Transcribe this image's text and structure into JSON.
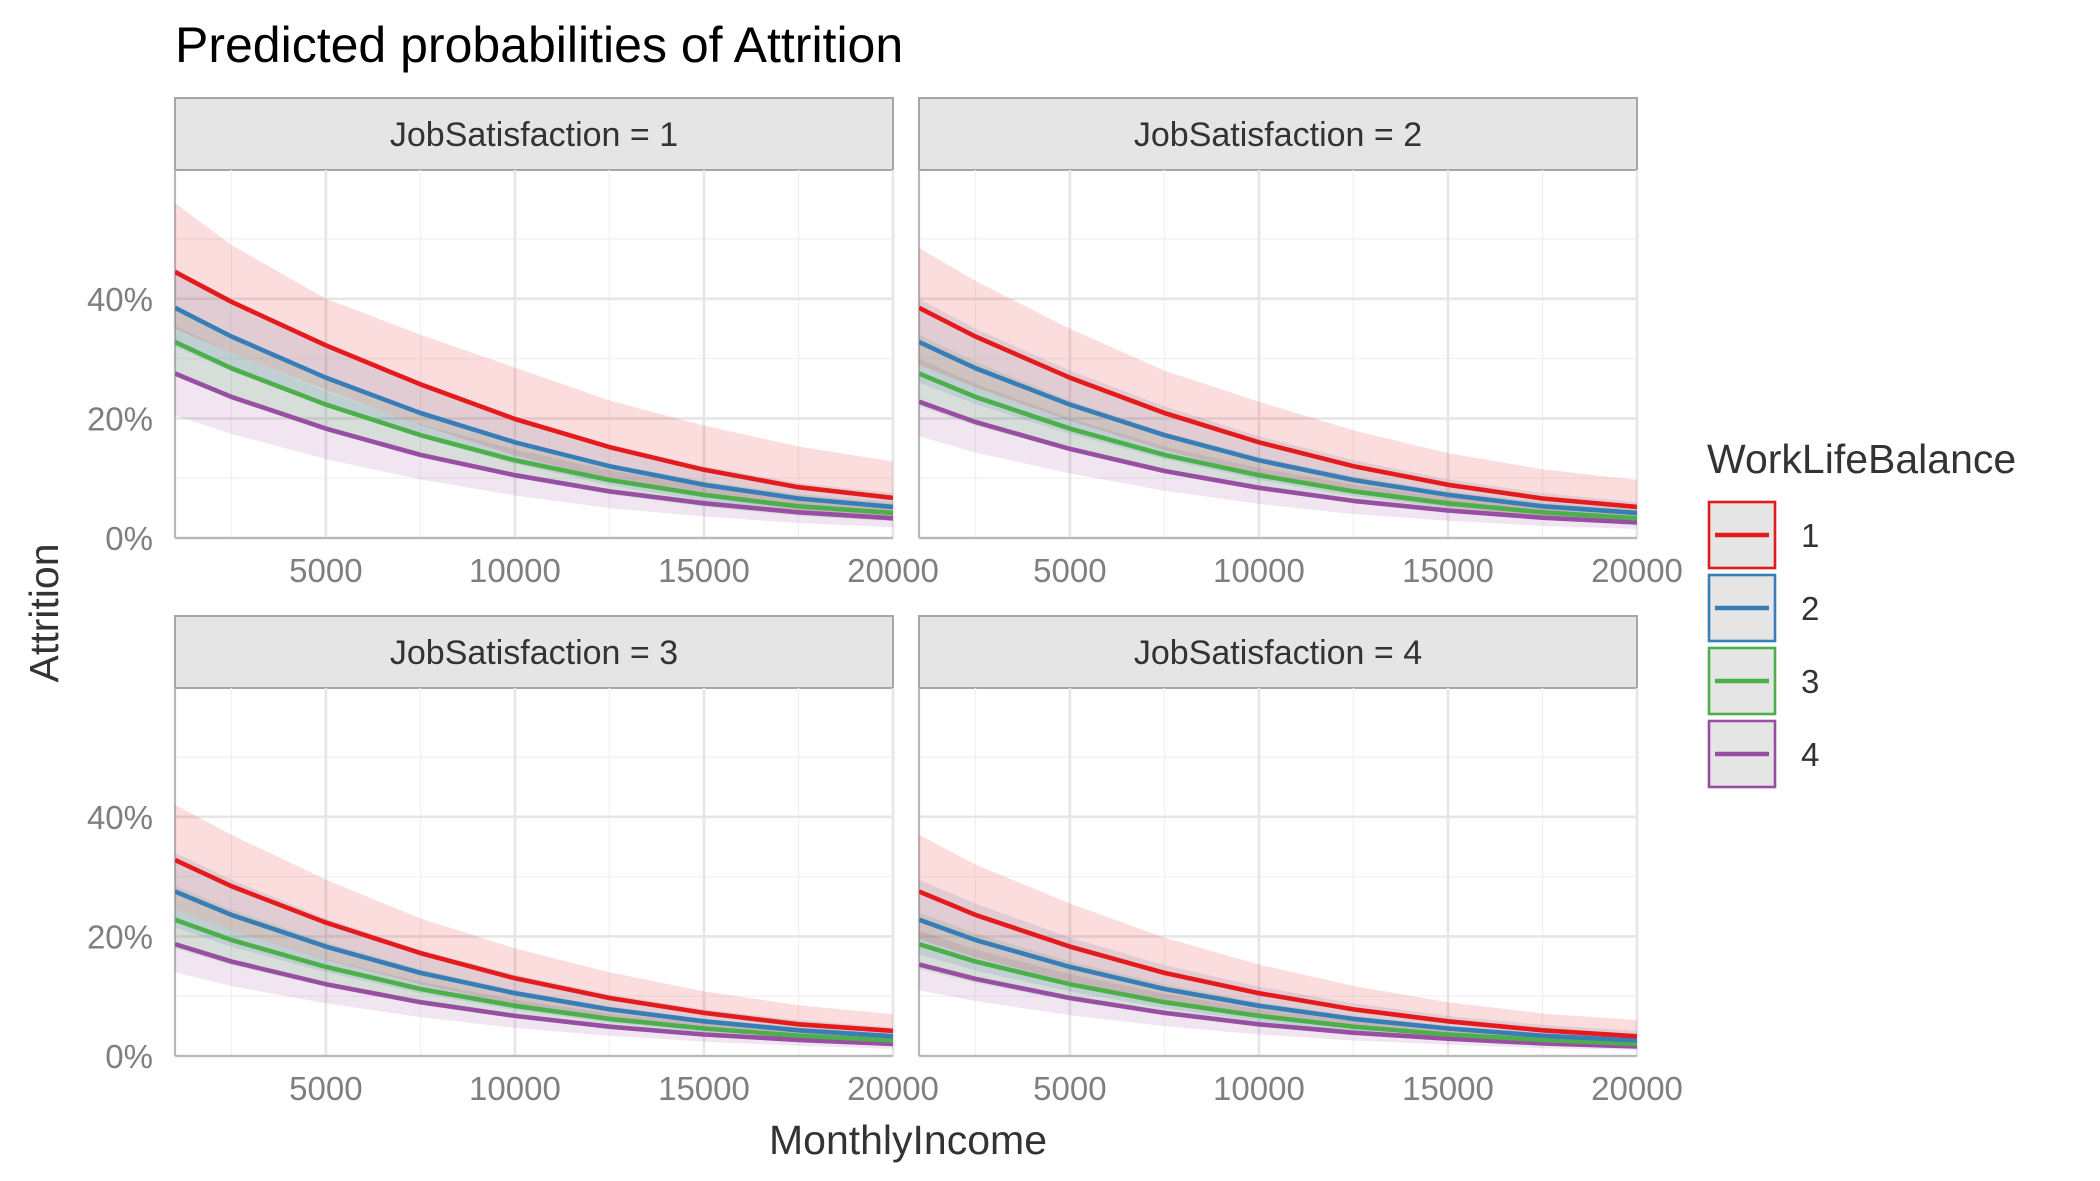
{
  "chart_data": {
    "type": "line",
    "title": "Predicted probabilities of Attrition",
    "xlabel": "MonthlyIncome",
    "ylabel": "Attrition",
    "xlim": [
      1009,
      19999
    ],
    "ylim": [
      0,
      0.6
    ],
    "x_ticks": [
      5000,
      10000,
      15000,
      20000
    ],
    "x_tick_labels": [
      "5000",
      "10000",
      "15000",
      "20000"
    ],
    "y_ticks": [
      0,
      0.2,
      0.4
    ],
    "y_tick_labels": [
      "0%",
      "20%",
      "40%"
    ],
    "grid": true,
    "legend": {
      "title": "WorkLifeBalance",
      "position": "right"
    },
    "x": [
      1000,
      2500,
      5000,
      7500,
      10000,
      12500,
      15000,
      17500,
      20000
    ],
    "facets": [
      {
        "label": "JobSatisfaction = 1",
        "series": [
          {
            "name": "1",
            "color": "#e41a1c",
            "values": [
              0.445,
              0.395,
              0.322,
              0.257,
              0.199,
              0.152,
              0.114,
              0.085,
              0.067
            ],
            "lower": [
              0.35,
              0.31,
              0.247,
              0.189,
              0.138,
              0.098,
              0.068,
              0.047,
              0.035
            ],
            "upper": [
              0.56,
              0.49,
              0.4,
              0.34,
              0.285,
              0.23,
              0.188,
              0.153,
              0.128
            ]
          },
          {
            "name": "2",
            "color": "#377eb8",
            "values": [
              0.385,
              0.337,
              0.268,
              0.209,
              0.16,
              0.12,
              0.089,
              0.066,
              0.052
            ],
            "lower": [
              0.32,
              0.279,
              0.22,
              0.168,
              0.124,
              0.088,
              0.062,
              0.044,
              0.033
            ],
            "upper": [
              0.45,
              0.4,
              0.32,
              0.254,
              0.2,
              0.155,
              0.12,
              0.092,
              0.075
            ]
          },
          {
            "name": "3",
            "color": "#4daf4a",
            "values": [
              0.328,
              0.284,
              0.223,
              0.172,
              0.13,
              0.097,
              0.072,
              0.053,
              0.042
            ],
            "lower": [
              0.27,
              0.232,
              0.18,
              0.137,
              0.101,
              0.073,
              0.052,
              0.037,
              0.028
            ],
            "upper": [
              0.39,
              0.34,
              0.27,
              0.212,
              0.163,
              0.124,
              0.095,
              0.073,
              0.06
            ]
          },
          {
            "name": "4",
            "color": "#984ea3",
            "values": [
              0.275,
              0.236,
              0.183,
              0.139,
              0.105,
              0.078,
              0.058,
              0.043,
              0.033
            ],
            "lower": [
              0.205,
              0.174,
              0.132,
              0.098,
              0.071,
              0.05,
              0.036,
              0.025,
              0.018
            ],
            "upper": [
              0.355,
              0.31,
              0.245,
              0.19,
              0.148,
              0.113,
              0.087,
              0.068,
              0.057
            ]
          }
        ]
      },
      {
        "label": "JobSatisfaction = 2",
        "series": [
          {
            "name": "1",
            "color": "#e41a1c",
            "values": [
              0.385,
              0.337,
              0.268,
              0.209,
              0.16,
              0.12,
              0.089,
              0.066,
              0.052
            ],
            "lower": [
              0.29,
              0.252,
              0.196,
              0.147,
              0.106,
              0.075,
              0.052,
              0.036,
              0.027
            ],
            "upper": [
              0.485,
              0.43,
              0.35,
              0.28,
              0.228,
              0.18,
              0.142,
              0.115,
              0.097
            ]
          },
          {
            "name": "2",
            "color": "#377eb8",
            "values": [
              0.328,
              0.284,
              0.223,
              0.172,
              0.13,
              0.097,
              0.072,
              0.053,
              0.042
            ],
            "lower": [
              0.26,
              0.224,
              0.174,
              0.132,
              0.097,
              0.07,
              0.05,
              0.035,
              0.026
            ],
            "upper": [
              0.4,
              0.35,
              0.28,
              0.22,
              0.17,
              0.13,
              0.098,
              0.075,
              0.06
            ]
          },
          {
            "name": "3",
            "color": "#4daf4a",
            "values": [
              0.275,
              0.236,
              0.183,
              0.139,
              0.105,
              0.078,
              0.058,
              0.043,
              0.033
            ],
            "lower": [
              0.22,
              0.188,
              0.145,
              0.109,
              0.08,
              0.058,
              0.042,
              0.03,
              0.022
            ],
            "upper": [
              0.34,
              0.295,
              0.23,
              0.177,
              0.136,
              0.103,
              0.078,
              0.06,
              0.048
            ]
          },
          {
            "name": "4",
            "color": "#984ea3",
            "values": [
              0.228,
              0.194,
              0.149,
              0.112,
              0.084,
              0.062,
              0.046,
              0.034,
              0.026
            ],
            "lower": [
              0.17,
              0.143,
              0.108,
              0.079,
              0.057,
              0.04,
              0.029,
              0.02,
              0.015
            ],
            "upper": [
              0.3,
              0.258,
              0.2,
              0.153,
              0.117,
              0.089,
              0.068,
              0.053,
              0.043
            ]
          }
        ]
      },
      {
        "label": "JobSatisfaction = 3",
        "series": [
          {
            "name": "1",
            "color": "#e41a1c",
            "values": [
              0.328,
              0.284,
              0.223,
              0.172,
              0.13,
              0.097,
              0.072,
              0.053,
              0.042
            ],
            "lower": [
              0.245,
              0.21,
              0.161,
              0.12,
              0.087,
              0.062,
              0.043,
              0.03,
              0.022
            ],
            "upper": [
              0.42,
              0.37,
              0.295,
              0.23,
              0.18,
              0.14,
              0.108,
              0.085,
              0.07
            ]
          },
          {
            "name": "2",
            "color": "#377eb8",
            "values": [
              0.275,
              0.236,
              0.183,
              0.139,
              0.105,
              0.078,
              0.058,
              0.043,
              0.033
            ],
            "lower": [
              0.215,
              0.183,
              0.14,
              0.105,
              0.077,
              0.056,
              0.04,
              0.028,
              0.021
            ],
            "upper": [
              0.34,
              0.295,
              0.23,
              0.177,
              0.136,
              0.103,
              0.078,
              0.06,
              0.048
            ]
          },
          {
            "name": "3",
            "color": "#4daf4a",
            "values": [
              0.228,
              0.194,
              0.149,
              0.112,
              0.084,
              0.062,
              0.046,
              0.034,
              0.026
            ],
            "lower": [
              0.18,
              0.152,
              0.116,
              0.086,
              0.063,
              0.046,
              0.033,
              0.023,
              0.017
            ],
            "upper": [
              0.285,
              0.245,
              0.19,
              0.145,
              0.11,
              0.083,
              0.062,
              0.048,
              0.038
            ]
          },
          {
            "name": "4",
            "color": "#984ea3",
            "values": [
              0.187,
              0.158,
              0.12,
              0.09,
              0.067,
              0.049,
              0.036,
              0.027,
              0.02
            ],
            "lower": [
              0.14,
              0.117,
              0.088,
              0.065,
              0.047,
              0.034,
              0.024,
              0.017,
              0.012
            ],
            "upper": [
              0.245,
              0.21,
              0.162,
              0.124,
              0.094,
              0.071,
              0.054,
              0.041,
              0.033
            ]
          }
        ]
      },
      {
        "label": "JobSatisfaction = 4",
        "series": [
          {
            "name": "1",
            "color": "#e41a1c",
            "values": [
              0.275,
              0.236,
              0.183,
              0.139,
              0.105,
              0.078,
              0.058,
              0.043,
              0.033
            ],
            "lower": [
              0.195,
              0.165,
              0.124,
              0.091,
              0.066,
              0.047,
              0.033,
              0.023,
              0.017
            ],
            "upper": [
              0.37,
              0.32,
              0.255,
              0.198,
              0.153,
              0.117,
              0.09,
              0.071,
              0.06
            ]
          },
          {
            "name": "2",
            "color": "#377eb8",
            "values": [
              0.228,
              0.194,
              0.149,
              0.112,
              0.084,
              0.062,
              0.046,
              0.034,
              0.026
            ],
            "lower": [
              0.17,
              0.143,
              0.108,
              0.08,
              0.058,
              0.042,
              0.03,
              0.021,
              0.016
            ],
            "upper": [
              0.295,
              0.255,
              0.198,
              0.152,
              0.116,
              0.088,
              0.067,
              0.052,
              0.042
            ]
          },
          {
            "name": "3",
            "color": "#4daf4a",
            "values": [
              0.187,
              0.158,
              0.12,
              0.09,
              0.067,
              0.049,
              0.036,
              0.027,
              0.02
            ],
            "lower": [
              0.145,
              0.122,
              0.092,
              0.068,
              0.05,
              0.036,
              0.026,
              0.018,
              0.013
            ],
            "upper": [
              0.24,
              0.205,
              0.158,
              0.12,
              0.09,
              0.067,
              0.05,
              0.038,
              0.03
            ]
          },
          {
            "name": "4",
            "color": "#984ea3",
            "values": [
              0.153,
              0.129,
              0.097,
              0.072,
              0.053,
              0.039,
              0.029,
              0.021,
              0.016
            ],
            "lower": [
              0.11,
              0.092,
              0.068,
              0.05,
              0.036,
              0.026,
              0.019,
              0.013,
              0.01
            ],
            "upper": [
              0.21,
              0.178,
              0.137,
              0.104,
              0.078,
              0.058,
              0.044,
              0.033,
              0.026
            ]
          }
        ]
      }
    ]
  }
}
